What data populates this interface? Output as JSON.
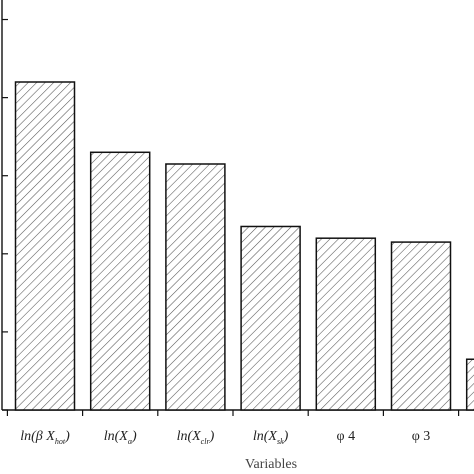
{
  "chart_data": {
    "type": "bar",
    "xlabel": "Variables",
    "ylabel": "",
    "title": "",
    "categories": [
      {
        "main": "ln(β X",
        "sub": "hot",
        "close": ")"
      },
      {
        "main": "ln(X",
        "sub": "α",
        "close": ")"
      },
      {
        "main": "ln(X",
        "sub": "clr",
        "close": ")"
      },
      {
        "main": "ln(X",
        "sub": "sk",
        "close": ")"
      },
      {
        "main": "φ 4",
        "sub": "",
        "close": ""
      },
      {
        "main": "φ 3",
        "sub": "",
        "close": ""
      },
      {
        "main": "",
        "sub": "",
        "close": ""
      }
    ],
    "values": [
      0.84,
      0.66,
      0.63,
      0.47,
      0.44,
      0.43,
      0.13
    ],
    "ylim": [
      0,
      1.05
    ],
    "grid": false,
    "legend": "none",
    "bar_fill": "#ffffff",
    "bar_stroke": "#111111",
    "hatch_color": "#555555"
  }
}
